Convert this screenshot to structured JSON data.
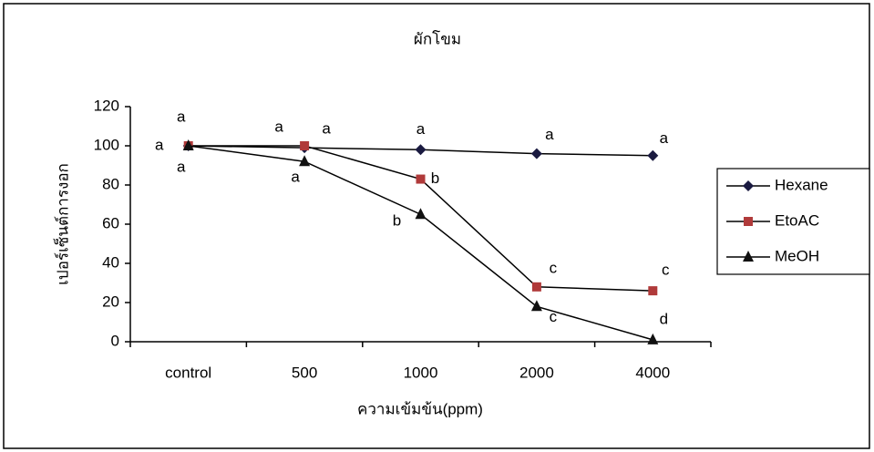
{
  "chart_data": {
    "type": "line",
    "title": "ผักโขม",
    "x_label": "ความเข้มข้น(ppm)",
    "y_label": "เปอร์เซ็นต์การงอก",
    "categories": [
      "control",
      "500",
      "1000",
      "2000",
      "4000"
    ],
    "ylim": [
      0,
      120
    ],
    "yticks": [
      0,
      20,
      40,
      60,
      80,
      100,
      120
    ],
    "legend": "right",
    "series": [
      {
        "name": "Hexane",
        "color": "#1a1a40",
        "marker": "diamond",
        "values": [
          100,
          99,
          98,
          96,
          95
        ],
        "letters": [
          "a",
          "a",
          "a",
          "a",
          "a"
        ]
      },
      {
        "name": "EtoAC",
        "color": "#b03a3a",
        "marker": "square",
        "values": [
          100,
          100,
          83,
          28,
          26
        ],
        "letters": [
          "a",
          "a",
          "b",
          "c",
          "c"
        ]
      },
      {
        "name": "MeOH",
        "color": "#111111",
        "marker": "triangle",
        "values": [
          100,
          92,
          65,
          18,
          1
        ],
        "letters": [
          "a",
          "a",
          "b",
          "c",
          "d"
        ]
      }
    ]
  }
}
